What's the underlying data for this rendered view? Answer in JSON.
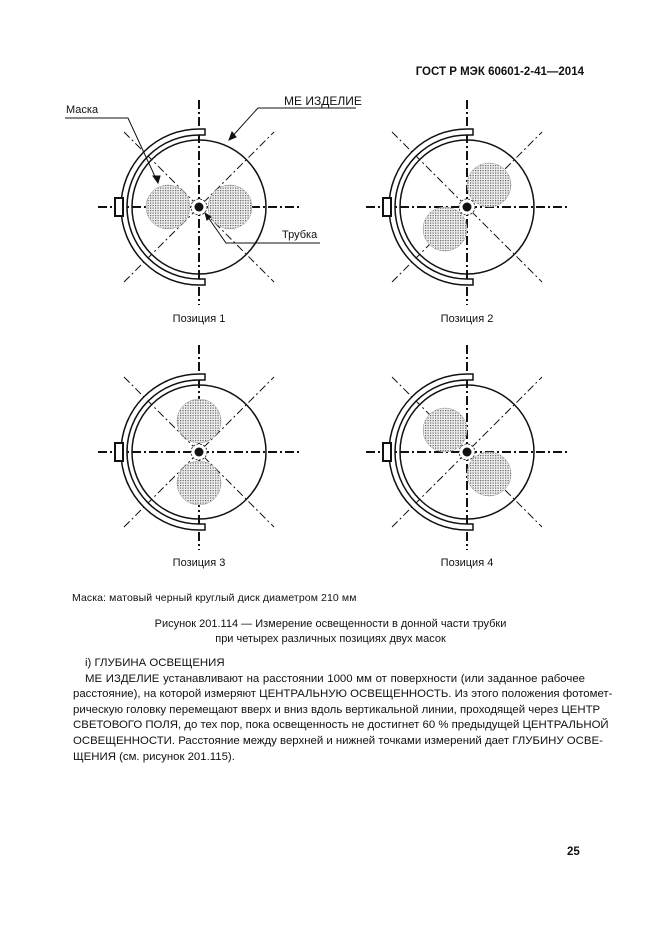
{
  "header": {
    "standard": "ГОСТ Р МЭК 60601-2-41—2014"
  },
  "figure": {
    "callouts": {
      "mask": "Маска",
      "device": "МЕ ИЗДЕЛИЕ",
      "tube": "Трубка"
    },
    "positions": [
      {
        "label": "Позиция 1",
        "masks": "left-right"
      },
      {
        "label": "Позиция 2",
        "masks": "upper-right / lower-left"
      },
      {
        "label": "Позиция 3",
        "masks": "top-bottom"
      },
      {
        "label": "Позиция 4",
        "masks": "upper-left / lower-right"
      }
    ],
    "note": "Маска: матовый черный круглый диск диаметром 210 мм",
    "caption_line1": "Рисунок 201.114 — Измерение освещенности в донной части трубки",
    "caption_line2": "при четырех различных позициях двух масок"
  },
  "section": {
    "heading": "i) ГЛУБИНА ОСВЕЩЕНИЯ",
    "lines": [
      "МЕ ИЗДЕЛИЕ устанавливают на расстоянии 1000 мм от поверхности (или заданное рабочее",
      "расстояние), на которой измеряют ЦЕНТРАЛЬНУЮ ОСВЕЩЕННОСТЬ. Из этого положения фотомет-",
      "рическую головку перемещают вверх и вниз вдоль вертикальной линии, проходящей через ЦЕНТР",
      "СВЕТОВОГО ПОЛЯ, до тех пор, пока освещенность не достигнет 60 % предыдущей ЦЕНТРАЛЬНОЙ",
      "ОСВЕЩЕННОСТИ. Расстояние между верхней и нижней точками измерений дает ГЛУБИНУ ОСВЕ-",
      "ЩЕНИЯ (см. рисунок 201.115)."
    ]
  },
  "page_number": "25"
}
